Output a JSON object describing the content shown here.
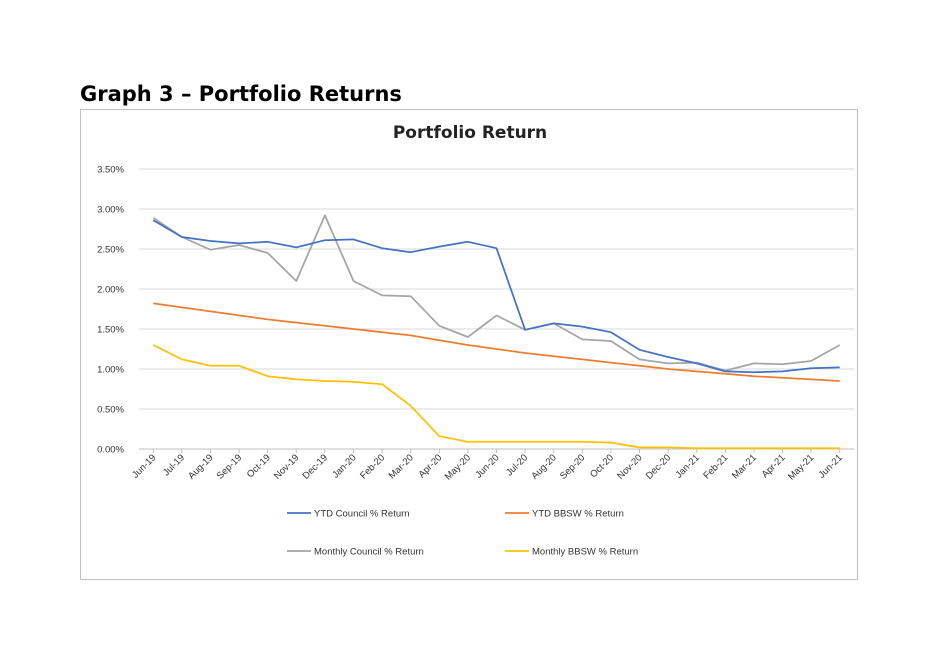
{
  "page": {
    "heading": "Graph 3 – Portfolio Returns"
  },
  "chart_data": {
    "type": "line",
    "title": "Portfolio Return",
    "xlabel": "",
    "ylabel": "",
    "ylim": [
      0,
      0.035
    ],
    "yticks": [
      0,
      0.005,
      0.01,
      0.015,
      0.02,
      0.025,
      0.03,
      0.035
    ],
    "ytick_labels": [
      "0.00%",
      "0.50%",
      "1.00%",
      "1.50%",
      "2.00%",
      "2.50%",
      "3.00%",
      "3.50%"
    ],
    "grid": true,
    "legend_position": "bottom",
    "categories": [
      "Jun-19",
      "Jul-19",
      "Aug-19",
      "Sep-19",
      "Oct-19",
      "Nov-19",
      "Dec-19",
      "Jan-20",
      "Feb-20",
      "Mar-20",
      "Apr-20",
      "May-20",
      "Jun-20",
      "Jul-20",
      "Aug-20",
      "Sep-20",
      "Oct-20",
      "Nov-20",
      "Dec-20",
      "Jan-21",
      "Feb-21",
      "Mar-21",
      "Apr-21",
      "May-21",
      "Jun-21"
    ],
    "series": [
      {
        "name": "YTD Council % Return",
        "color": "#4472c4",
        "values": [
          0.0286,
          0.0265,
          0.026,
          0.0257,
          0.0259,
          0.0252,
          0.0261,
          0.0262,
          0.0251,
          0.0246,
          0.0253,
          0.0259,
          0.0251,
          0.0149,
          0.0157,
          0.0153,
          0.0146,
          0.0124,
          0.0115,
          0.0107,
          0.0097,
          0.0096,
          0.0097,
          0.0101,
          0.0102
        ]
      },
      {
        "name": "YTD BBSW % Return",
        "color": "#ed7d31",
        "values": [
          0.0182,
          0.0177,
          0.0172,
          0.0167,
          0.0162,
          0.0158,
          0.0154,
          0.015,
          0.0146,
          0.0142,
          0.0136,
          0.013,
          0.0125,
          0.012,
          0.0116,
          0.0112,
          0.0108,
          0.0104,
          0.01,
          0.0097,
          0.0094,
          0.0091,
          0.0089,
          0.0087,
          0.0085
        ]
      },
      {
        "name": "Monthly Council % Return",
        "color": "#a5a5a5",
        "values": [
          0.0289,
          0.0265,
          0.0249,
          0.0255,
          0.0245,
          0.021,
          0.0292,
          0.021,
          0.0192,
          0.0191,
          0.0154,
          0.014,
          0.0167,
          0.0149,
          0.0157,
          0.0137,
          0.0135,
          0.0112,
          0.0107,
          0.0108,
          0.0098,
          0.0107,
          0.0106,
          0.011,
          0.013
        ]
      },
      {
        "name": "Monthly BBSW % Return",
        "color": "#ffc000",
        "values": [
          0.013,
          0.0112,
          0.0104,
          0.0104,
          0.0091,
          0.0087,
          0.0085,
          0.0084,
          0.0081,
          0.0054,
          0.0016,
          0.0009,
          0.0009,
          0.0009,
          0.0009,
          0.0009,
          0.0008,
          0.0002,
          0.0002,
          0.0001,
          0.0001,
          0.0001,
          0.0001,
          0.0001,
          0.0001
        ]
      }
    ]
  }
}
